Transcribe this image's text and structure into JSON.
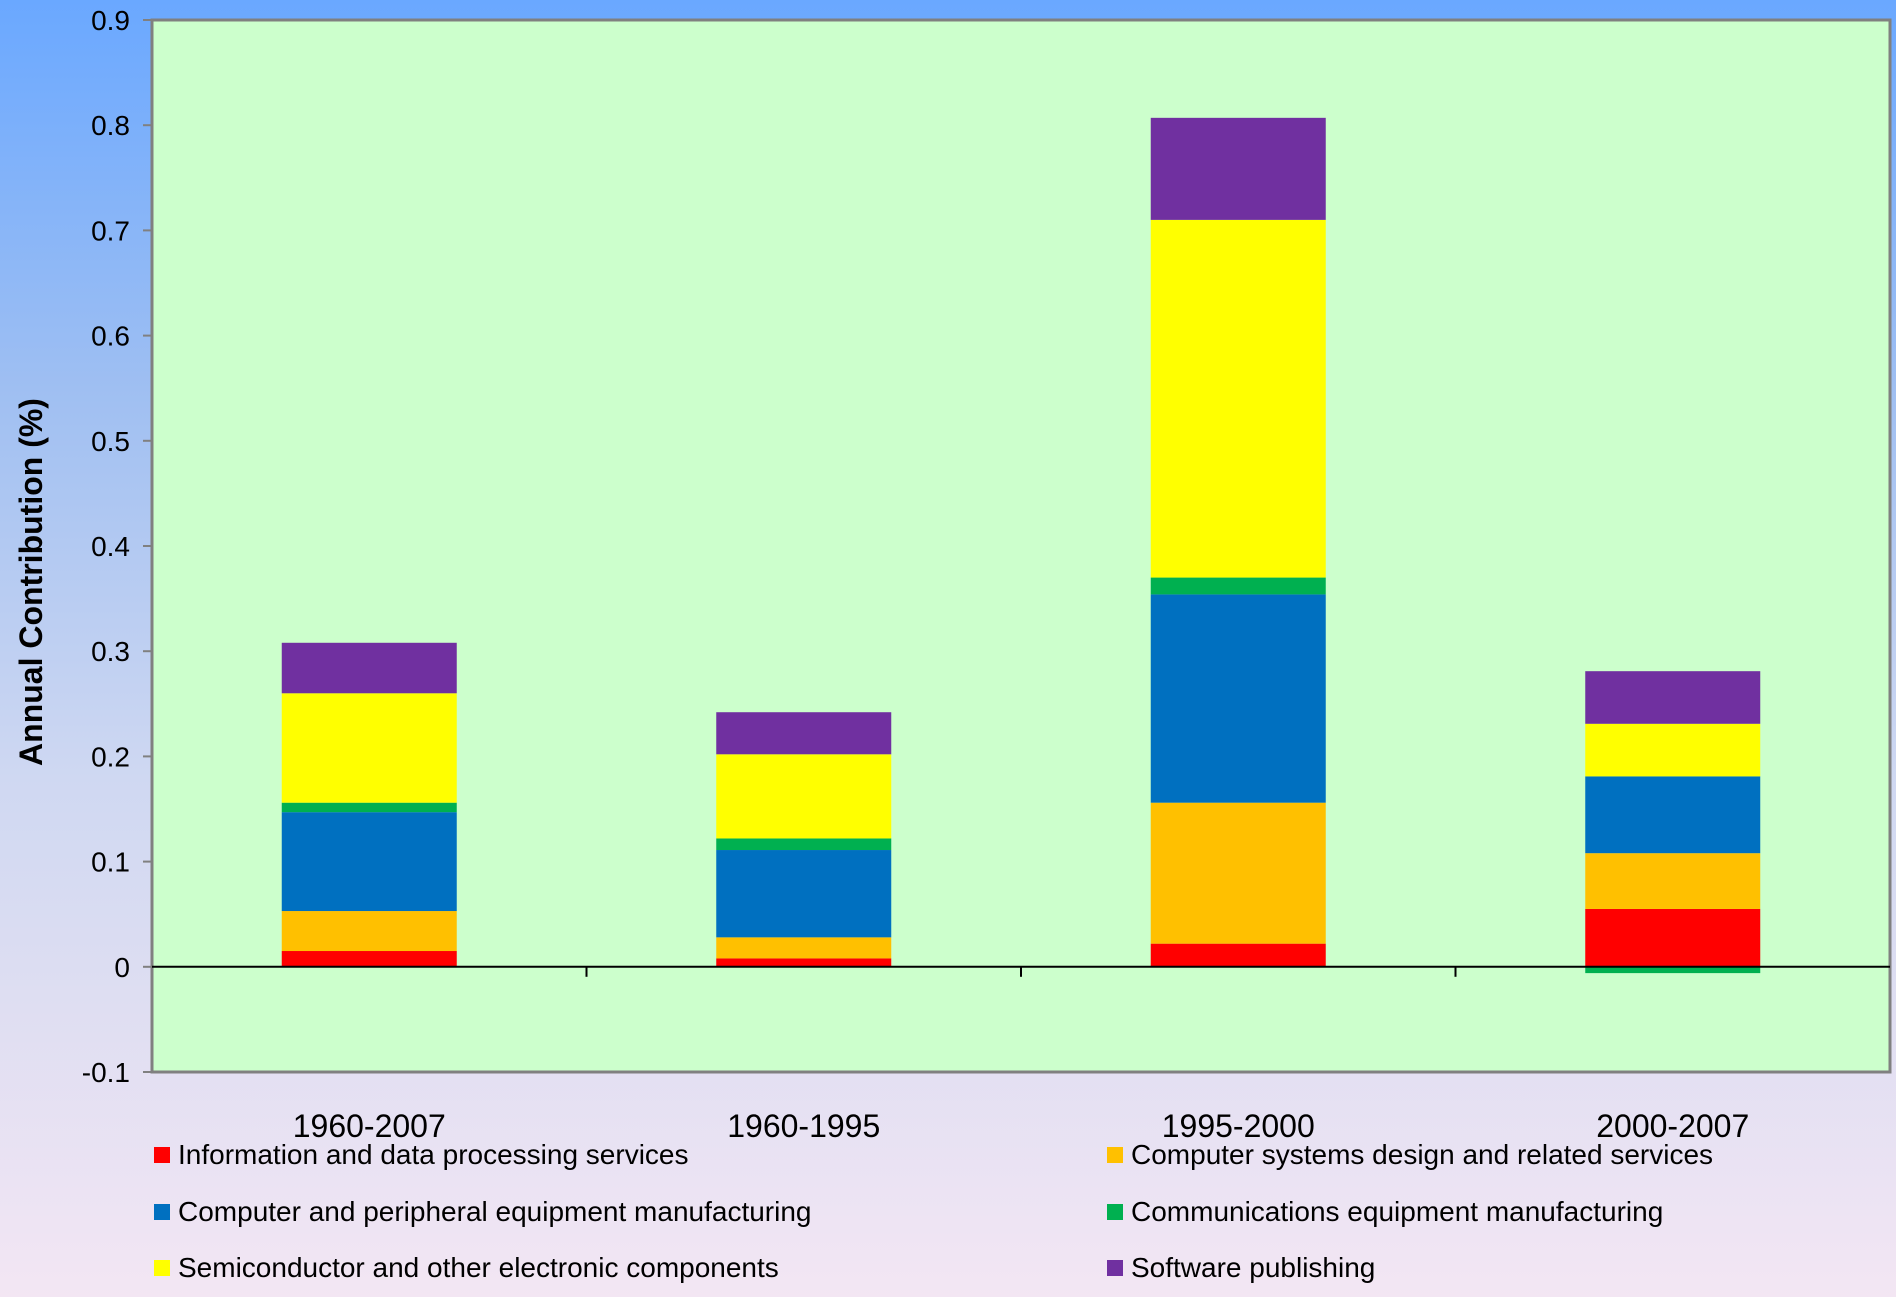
{
  "chart_data": {
    "type": "bar",
    "stacked": true,
    "title": "",
    "xlabel": "",
    "ylabel": "Annual Contribution (%)",
    "ylim": [
      -0.1,
      0.9
    ],
    "yticks": [
      "0.9",
      "0.8",
      "0.7",
      "0.6",
      "0.5",
      "0.4",
      "0.3",
      "0.2",
      "0.1",
      "0",
      "-0.1"
    ],
    "categories": [
      "1960-2007",
      "1960-1995",
      "1995-2000",
      "2000-2007"
    ],
    "series": [
      {
        "name": "Information and data processing services",
        "color": "#ff0000",
        "values": [
          0.015,
          0.008,
          0.022,
          0.055
        ]
      },
      {
        "name": "Computer systems design and related services",
        "color": "#ffc000",
        "values": [
          0.038,
          0.02,
          0.134,
          0.053
        ]
      },
      {
        "name": "Computer and peripheral equipment manufacturing",
        "color": "#0070c0",
        "values": [
          0.094,
          0.083,
          0.198,
          0.073
        ]
      },
      {
        "name": "Communications equipment manufacturing",
        "color": "#00b050",
        "values": [
          0.009,
          0.011,
          0.016,
          -0.006
        ]
      },
      {
        "name": "Semiconductor and other electronic components",
        "color": "#ffff00",
        "values": [
          0.104,
          0.08,
          0.34,
          0.05
        ]
      },
      {
        "name": "Software publishing",
        "color": "#7030a0",
        "values": [
          0.048,
          0.04,
          0.097,
          0.05
        ]
      }
    ],
    "grid": false,
    "legend_position": "bottom",
    "plot_background": "#ccffcc"
  }
}
